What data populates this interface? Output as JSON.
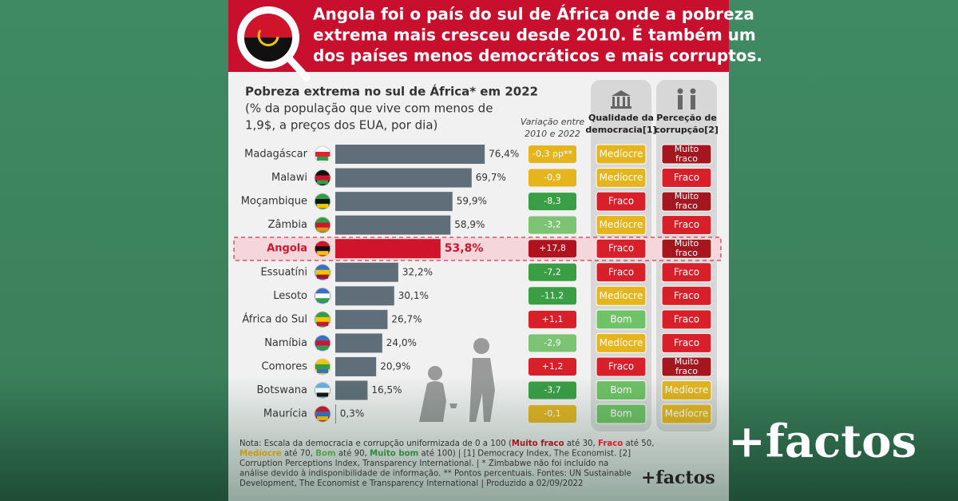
{
  "header": {
    "title_lines": [
      "Angola foi o país do sul de África onde a pobreza",
      "extrema mais cresceu desde 2010. É também um",
      "dos países menos democráticos e mais corruptos."
    ]
  },
  "chart_data": {
    "type": "bar",
    "orientation": "horizontal",
    "title": "Pobreza extrema no sul de África* em 2022",
    "subtitle_lines": [
      "(% da população que vive com menos de",
      "1,9$, a preços dos EUA, por dia)"
    ],
    "categories": [
      "Madagáscar",
      "Malawi",
      "Moçambique",
      "Zâmbia",
      "Angola",
      "Essuatíni",
      "Lesoto",
      "África do Sul",
      "Namíbia",
      "Comores",
      "Botswana",
      "Maurícia"
    ],
    "values": [
      76.4,
      69.7,
      59.9,
      58.9,
      53.8,
      32.2,
      30.1,
      26.7,
      24.0,
      20.9,
      16.5,
      0.3
    ],
    "value_labels": [
      "76,4%",
      "69,7%",
      "59,9%",
      "58,9%",
      "53,8%",
      "32,2%",
      "30,1%",
      "26,7%",
      "24,0%",
      "20,9%",
      "16,5%",
      "0,3%"
    ],
    "color": "#5f6e78",
    "highlight_index": 4,
    "highlight_color": "#d0142c",
    "xlim": [
      0,
      100
    ]
  },
  "table": {
    "variation": {
      "header_lines": [
        "Variação entre",
        "2010 e 2022"
      ],
      "values": [
        -0.3,
        -0.9,
        -8.3,
        -3.2,
        17.8,
        -7.2,
        -11.2,
        1.1,
        -2.9,
        1.2,
        -3.7,
        -0.1
      ],
      "value_labels": [
        "-0,3 pp**",
        "-0,9",
        "-8,3",
        "-3,2",
        "+17,8",
        "-7,2",
        "-11,2",
        "+1,1",
        "-2,9",
        "+1,2",
        "-3,7",
        "-0,1"
      ],
      "colors": [
        "#e6b51e",
        "#e6b51e",
        "#3a9e44",
        "#7cc473",
        "#b0121e",
        "#3a9e44",
        "#3a9e44",
        "#d8202b",
        "#7cc473",
        "#d8202b",
        "#3a9e44",
        "#e6b51e"
      ]
    },
    "democracy": {
      "header_lines": [
        "Qualidade da",
        "democracia[1]"
      ],
      "values": [
        "Medíocre",
        "Medíocre",
        "Fraco",
        "Medíocre",
        "Fraco",
        "Fraco",
        "Medíocre",
        "Bom",
        "Medíocre",
        "Fraco",
        "Bom",
        "Bom"
      ]
    },
    "corruption": {
      "header_lines": [
        "Perceção de",
        "corrupção[2]"
      ],
      "values": [
        "Muito fraco",
        "Fraco",
        "Muito fraco",
        "Fraco",
        "Muito fraco",
        "Fraco",
        "Fraco",
        "Fraco",
        "Fraco",
        "Muito fraco",
        "Medíocre",
        "Medíocre"
      ]
    },
    "rating_colors": {
      "Muito fraco": "#a5161f",
      "Fraco": "#d8202b",
      "Medíocre": "#e6b51e",
      "Bom": "#6fc266"
    }
  },
  "note": {
    "lines": [
      [
        {
          "text": "Nota: Escala da democracia e corrupção uniformizada de 0 a 100 ("
        },
        {
          "text": "Muito fraco",
          "color": "#a5161f"
        },
        {
          "text": " até 30, "
        },
        {
          "text": "Fraco",
          "color": "#d8202b"
        },
        {
          "text": " até 50,"
        }
      ],
      [
        {
          "text": "Medíocre",
          "color": "#c99a10"
        },
        {
          "text": " até 70, "
        },
        {
          "text": "Bom",
          "color": "#4fa446"
        },
        {
          "text": " até 90, "
        },
        {
          "text": "Muito bom",
          "color": "#2f8a36"
        },
        {
          "text": " até 100) | [1] Democracy Index, The Economist. [2]"
        }
      ],
      [
        {
          "text": "Corruption Perceptions Index, Transparency International. | * Zimbabwe não foi incluído na"
        }
      ],
      [
        {
          "text": "análise devido à indisponibilidade de informação. ** Pontos percentuais. Fontes: UN Sustainable"
        }
      ],
      [
        {
          "text": "Development, The Economist e Transparency International | Produzido a 02/09/2022"
        }
      ]
    ]
  },
  "brand": "+factos"
}
